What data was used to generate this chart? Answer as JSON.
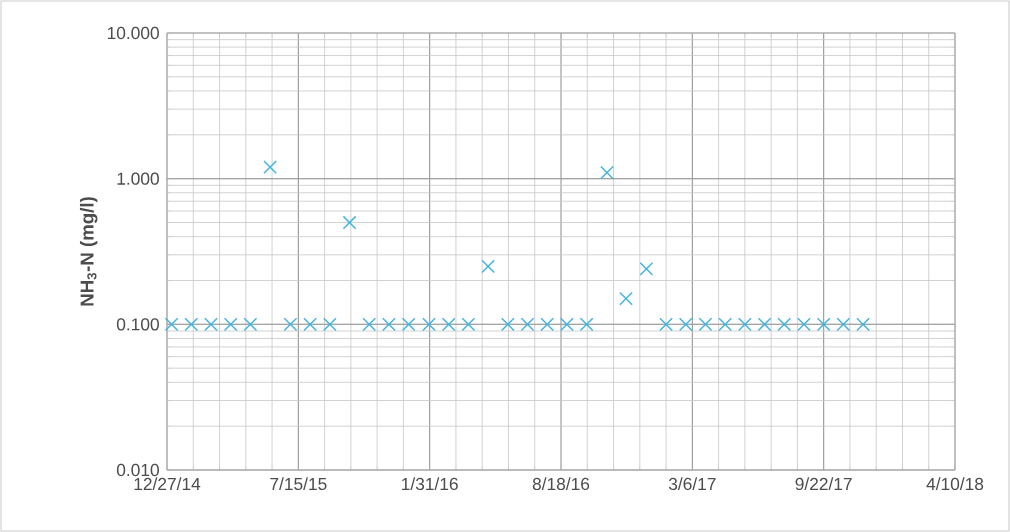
{
  "chart_data": {
    "type": "scatter",
    "ylabel": "**NH$_{3}$-N  (mg/l)**",
    "log": "y",
    "grid": true,
    "marker": "cross",
    "color": "#41b4e0",
    "x": [
      "2015-01-03",
      "2015-02-02",
      "2015-03-04",
      "2015-04-03",
      "2015-05-03",
      "2015-06-02",
      "2015-07-03",
      "2015-08-02",
      "2015-09-01",
      "2015-10-01",
      "2015-10-31",
      "2015-11-30",
      "2015-12-30",
      "2016-01-30",
      "2016-02-29",
      "2016-03-30",
      "2016-04-29",
      "2016-05-29",
      "2016-06-28",
      "2016-07-28",
      "2016-08-27",
      "2016-09-26",
      "2016-10-27",
      "2016-11-25",
      "2016-12-26",
      "2017-01-25",
      "2017-02-24",
      "2017-03-26",
      "2017-04-25",
      "2017-05-25",
      "2017-06-24",
      "2017-07-24",
      "2017-08-23",
      "2017-09-22",
      "2017-10-22",
      "2017-11-21"
    ],
    "values": [
      0.1,
      0.1,
      0.1,
      0.1,
      0.1,
      1.2,
      0.1,
      0.1,
      0.1,
      0.5,
      0.1,
      0.1,
      0.1,
      0.1,
      0.1,
      0.1,
      0.25,
      0.1,
      0.1,
      0.1,
      0.1,
      0.1,
      1.1,
      0.15,
      0.24,
      0.1,
      0.1,
      0.1,
      0.1,
      0.1,
      0.1,
      0.1,
      0.1,
      0.1,
      0.1,
      0.1
    ],
    "xlim": [
      "2014-12-27",
      "2018-04-10"
    ],
    "xticks": [
      {
        "value": "2014-12-27",
        "label": "12/27/14"
      },
      {
        "value": "2015-07-15",
        "label": "7/15/15"
      },
      {
        "value": "2016-01-31",
        "label": "1/31/16"
      },
      {
        "value": "2016-08-18",
        "label": "8/18/16"
      },
      {
        "value": "2017-03-06",
        "label": "3/6/17"
      },
      {
        "value": "2017-09-22",
        "label": "9/22/17"
      },
      {
        "value": "2018-04-10",
        "label": "4/10/18"
      }
    ],
    "ylim": [
      0.01,
      10
    ],
    "yticks": [
      {
        "value": 0.01,
        "label": "0.010"
      },
      {
        "value": 0.1,
        "label": "0.100"
      },
      {
        "value": 1,
        "label": "1.000"
      },
      {
        "value": 10,
        "label": "10.000"
      }
    ]
  }
}
